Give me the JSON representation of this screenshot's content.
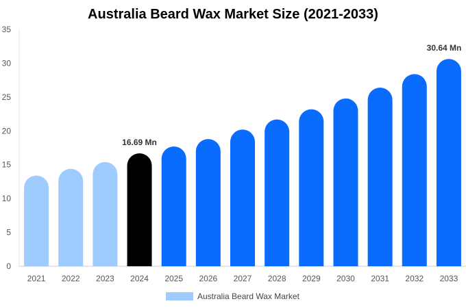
{
  "chart_data": {
    "type": "bar",
    "title": "Australia Beard Wax Market Size (2021-2033)",
    "xlabel": "",
    "ylabel": "",
    "categories": [
      "2021",
      "2022",
      "2023",
      "2024",
      "2025",
      "2026",
      "2027",
      "2028",
      "2029",
      "2030",
      "2031",
      "2032",
      "2033"
    ],
    "series": [
      {
        "name": "Australia Beard Wax Market",
        "values": [
          13.4,
          14.4,
          15.4,
          16.69,
          17.7,
          18.8,
          20.2,
          21.7,
          23.2,
          24.8,
          26.4,
          28.4,
          30.64
        ]
      }
    ],
    "data_labels": [
      {
        "category": "2024",
        "text": "16.69 Mn"
      },
      {
        "category": "2033",
        "text": "30.64 Mn"
      }
    ],
    "ylim": [
      0,
      35
    ],
    "yticks": [
      0,
      5,
      10,
      15,
      20,
      25,
      30,
      35
    ],
    "grid": false,
    "legend_position": "bottom",
    "colors": {
      "historical": "#a0cbff",
      "base_year": "#000000",
      "forecast": "#0a6cff",
      "legend_swatch": "#a0cbff"
    },
    "bar_color_groups": [
      "historical",
      "historical",
      "historical",
      "base_year",
      "forecast",
      "forecast",
      "forecast",
      "forecast",
      "forecast",
      "forecast",
      "forecast",
      "forecast",
      "forecast"
    ]
  }
}
